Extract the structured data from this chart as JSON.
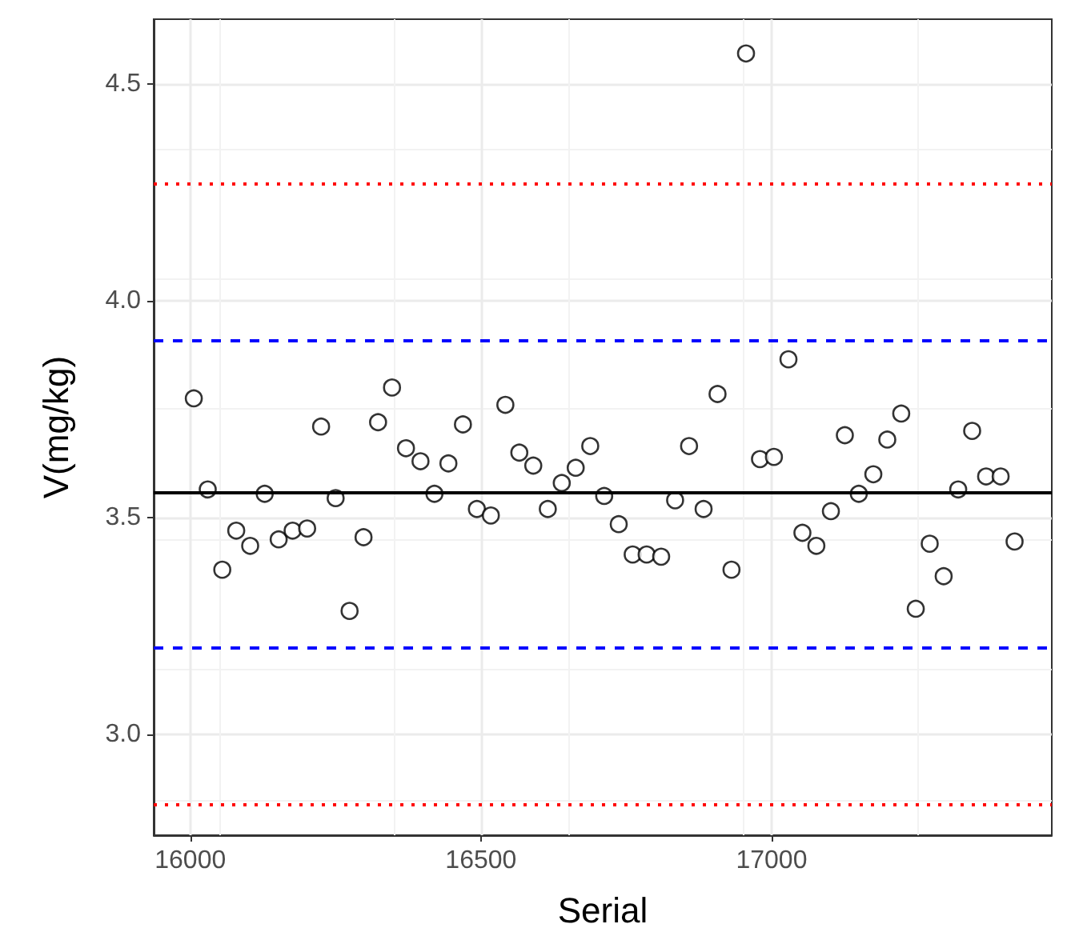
{
  "chart_data": {
    "type": "scatter",
    "xlabel": "Serial",
    "ylabel": "V(mg/kg)",
    "x": [
      16006,
      16030,
      16055,
      16079,
      16103,
      16128,
      16152,
      16176,
      16201,
      16225,
      16250,
      16274,
      16298,
      16323,
      16347,
      16371,
      16396,
      16420,
      16444,
      16469,
      16493,
      16517,
      16542,
      16566,
      16590,
      16615,
      16639,
      16663,
      16688,
      16712,
      16737,
      16761,
      16785,
      16810,
      16834,
      16858,
      16883,
      16907,
      16931,
      16956,
      16980,
      17004,
      17029,
      17053,
      17077,
      17102,
      17126,
      17150,
      17175,
      17199,
      17223,
      17248,
      17272,
      17296,
      17321,
      17345,
      17369,
      17394,
      17418
    ],
    "values": [
      3.775,
      3.565,
      3.38,
      3.47,
      3.435,
      3.555,
      3.45,
      3.47,
      3.475,
      3.71,
      3.545,
      3.285,
      3.455,
      3.72,
      3.8,
      3.66,
      3.63,
      3.555,
      3.625,
      3.715,
      3.52,
      3.505,
      3.76,
      3.65,
      3.62,
      3.52,
      3.58,
      3.615,
      3.665,
      3.55,
      3.485,
      3.415,
      3.415,
      3.41,
      3.54,
      3.665,
      3.52,
      3.785,
      3.38,
      4.57,
      3.635,
      3.64,
      3.865,
      3.465,
      3.435,
      3.515,
      3.69,
      3.555,
      3.6,
      3.68,
      3.74,
      3.29,
      3.44,
      3.365,
      3.565,
      3.7,
      3.595,
      3.595,
      3.445
    ],
    "color": "#000000",
    "marker": "circle",
    "xlim": [
      15937,
      17482
    ],
    "xticks": [
      16000,
      16500,
      17000
    ],
    "ylim": [
      2.768,
      4.649
    ],
    "yticks": [
      {
        "value": 3,
        "label": "3.0"
      },
      3.5,
      {
        "value": 4,
        "label": "4.0"
      },
      4.5
    ],
    "grid": true,
    "ref_lines": [
      {
        "axis": "y",
        "value": 3.556,
        "color": "#000000",
        "line_style": "solid"
      },
      {
        "axis": "y",
        "value": 3.912,
        "color": "#0000ff",
        "line_style": "dashed"
      },
      {
        "axis": "y",
        "value": 3.2,
        "color": "#0000ff",
        "line_style": "dashed"
      },
      {
        "axis": "y",
        "value": 4.268,
        "color": "#ff0000",
        "line_style": "dotted"
      },
      {
        "axis": "y",
        "value": 2.844,
        "color": "#ff0000",
        "line_style": "dotted"
      }
    ]
  }
}
